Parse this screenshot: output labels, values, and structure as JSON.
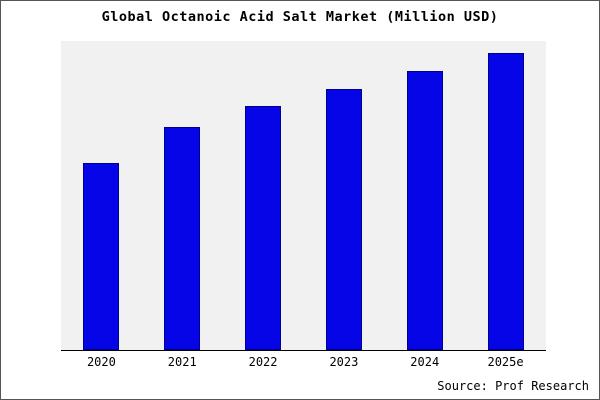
{
  "title": "Global Octanoic Acid Salt Market (Million USD)",
  "source": "Source: Prof Research",
  "colors": {
    "bar_fill": "#0505e8",
    "bar_border": "#00008b",
    "plot_bg": "#f1f1f1",
    "frame_border": "#555555"
  },
  "chart_data": {
    "type": "bar",
    "title": "Global Octanoic Acid Salt Market (Million USD)",
    "categories": [
      "2020",
      "2021",
      "2022",
      "2023",
      "2024",
      "2025e"
    ],
    "values": [
      63,
      75,
      82,
      88,
      94,
      100
    ],
    "xlabel": "",
    "ylabel": "",
    "ylim": [
      0,
      104
    ],
    "grid": false,
    "legend": false,
    "y_axis_ticks_visible": false,
    "annotation": "Source: Prof Research"
  }
}
